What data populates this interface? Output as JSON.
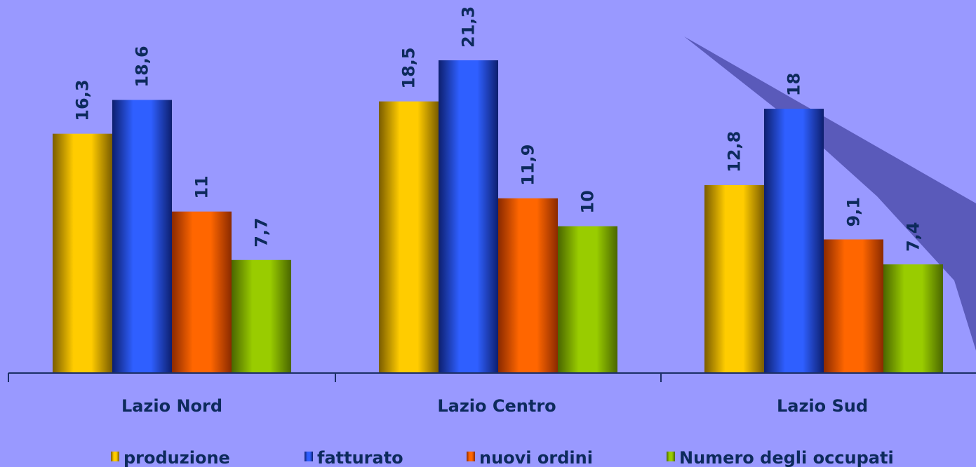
{
  "chart_data": {
    "type": "bar",
    "categories": [
      "Lazio Nord",
      "Lazio Centro",
      "Lazio Sud"
    ],
    "series": [
      {
        "name": "produzione",
        "values": [
          16.3,
          18.5,
          12.8
        ],
        "color": "#ffcc00",
        "dark": "#7a5c00"
      },
      {
        "name": "fatturato",
        "values": [
          18.6,
          21.3,
          18
        ],
        "color": "#2f5fff",
        "dark": "#0d1f6e"
      },
      {
        "name": "nuovi ordini",
        "values": [
          11,
          11.9,
          9.1
        ],
        "color": "#ff6600",
        "dark": "#8a2a00"
      },
      {
        "name": "Numero degli occupati",
        "values": [
          7.7,
          10,
          7.4
        ],
        "color": "#99cc00",
        "dark": "#4a6600"
      }
    ],
    "value_labels": [
      [
        "16,3",
        "18,5",
        "12,8"
      ],
      [
        "18,6",
        "21,3",
        "18"
      ],
      [
        "11",
        "11,9",
        "9,1"
      ],
      [
        "7,7",
        "10",
        "7,4"
      ]
    ],
    "title": "",
    "xlabel": "",
    "ylabel": "",
    "ylim": [
      0,
      24
    ],
    "grid": false,
    "legend_position": "bottom"
  }
}
